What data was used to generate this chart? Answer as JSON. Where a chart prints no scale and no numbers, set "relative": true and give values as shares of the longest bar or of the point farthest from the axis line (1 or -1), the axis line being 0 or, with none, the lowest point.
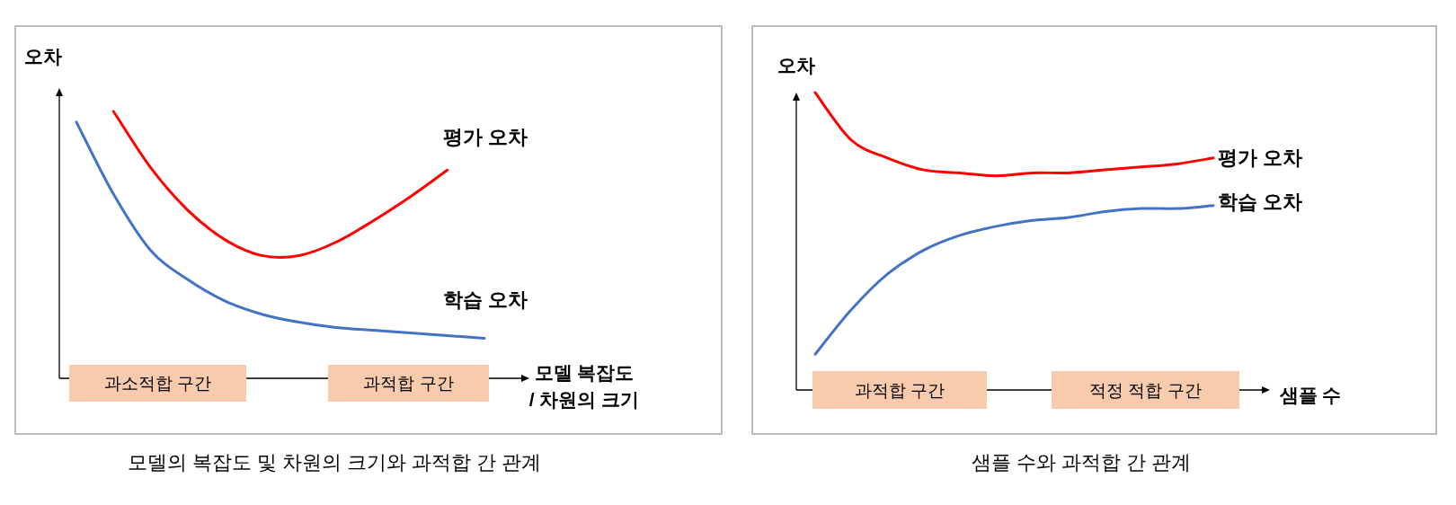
{
  "chart_data": [
    {
      "type": "line",
      "relative": true,
      "title": "모델의 복잡도 및 차원의 크기와 과적합 간 관계",
      "ylabel": "오차",
      "xlabel": "모델 복잡도\n/ 차원의 크기",
      "categories": [
        null,
        null,
        null,
        null,
        null,
        null,
        null,
        null,
        null,
        null,
        null,
        null
      ],
      "series": [
        {
          "name": "평가 오차",
          "color": "#ff0000",
          "values": [
            null,
            1.0,
            0.79,
            0.63,
            0.52,
            0.46,
            0.46,
            0.51,
            0.59,
            0.68,
            0.78,
            null
          ]
        },
        {
          "name": "학습 오차",
          "color": "#4472c4",
          "values": [
            0.96,
            0.69,
            0.48,
            0.37,
            0.29,
            0.24,
            0.21,
            0.19,
            0.18,
            0.17,
            0.16,
            0.15
          ]
        }
      ],
      "annotations": [
        "과소적합 구간",
        "과적합 구간"
      ]
    },
    {
      "type": "line",
      "relative": true,
      "title": "샘플 수와 과적합 간 관계",
      "ylabel": "오차",
      "xlabel": "샘플 수",
      "categories": [
        null,
        null,
        null,
        null,
        null,
        null,
        null,
        null,
        null,
        null,
        null,
        null
      ],
      "series": [
        {
          "name": "평가 오차",
          "color": "#ff0000",
          "values": [
            1.0,
            0.84,
            0.78,
            0.74,
            0.73,
            0.72,
            0.73,
            0.73,
            0.74,
            0.75,
            0.76,
            0.78
          ]
        },
        {
          "name": "학습 오차",
          "color": "#4472c4",
          "values": [
            0.12,
            0.27,
            0.39,
            0.47,
            0.52,
            0.55,
            0.57,
            0.58,
            0.6,
            0.61,
            0.61,
            0.62
          ]
        }
      ],
      "annotations": [
        "과적합 구간",
        "적정 적합 구간"
      ]
    }
  ]
}
